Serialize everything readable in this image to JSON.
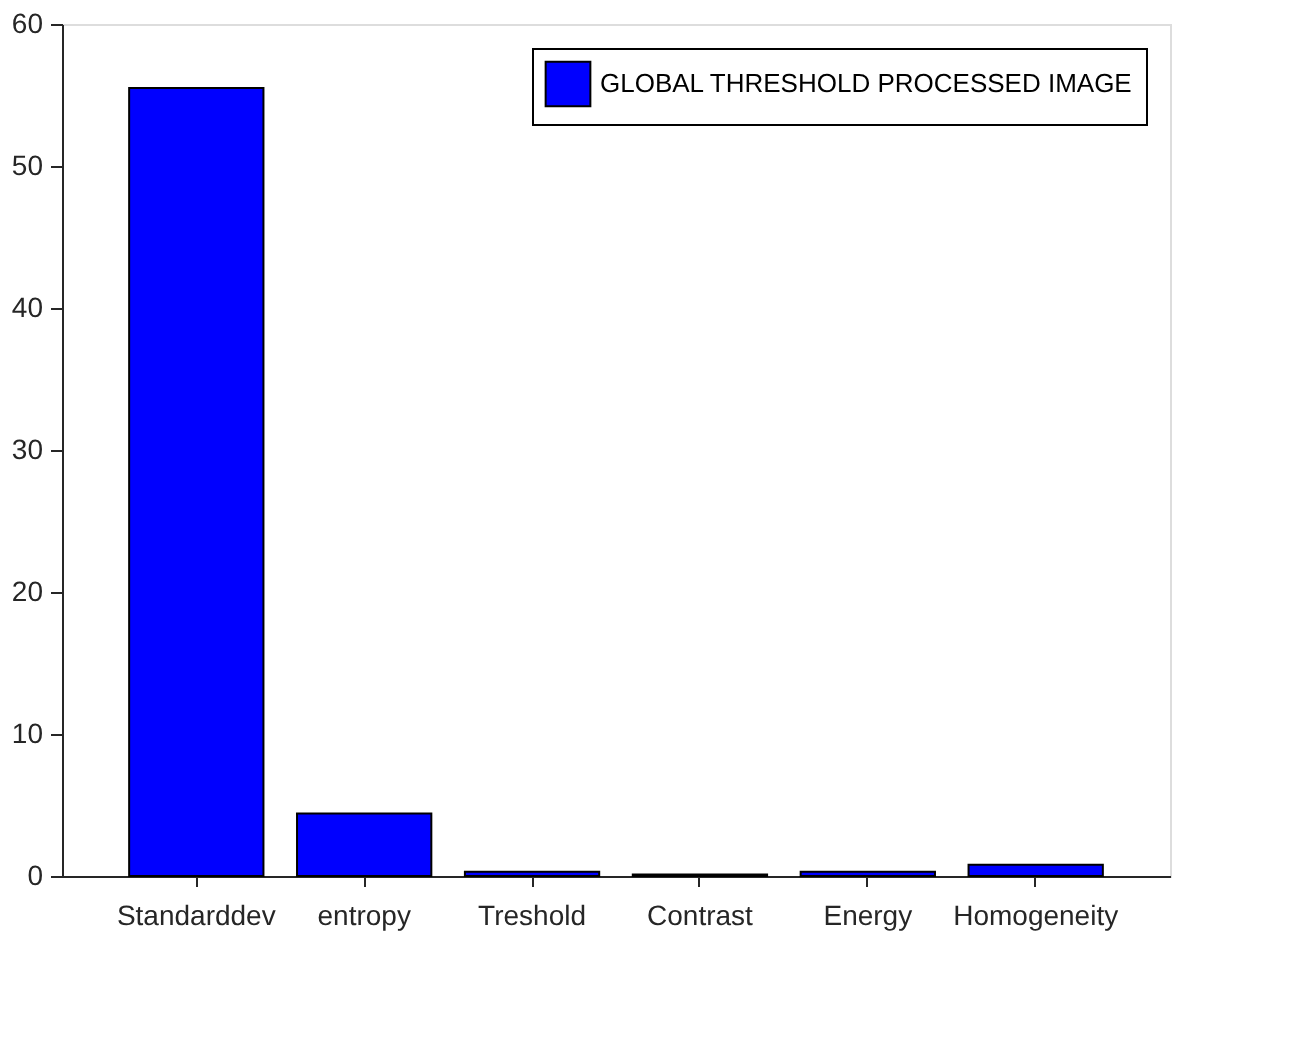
{
  "chart_data": {
    "type": "bar",
    "categories": [
      "Standarddev",
      "entropy",
      "Treshold",
      "Contrast",
      "Energy",
      "Homogeneity"
    ],
    "series": [
      {
        "name": "GLOBAL THRESHOLD PROCESSED IMAGE",
        "color": "#0000ff",
        "values": [
          55.5,
          4.4,
          0.3,
          0.1,
          0.3,
          0.8
        ]
      }
    ],
    "ylim": [
      0,
      60
    ],
    "yticks": [
      0,
      10,
      20,
      30,
      40,
      50,
      60
    ],
    "grid": false,
    "legend": "top right"
  }
}
